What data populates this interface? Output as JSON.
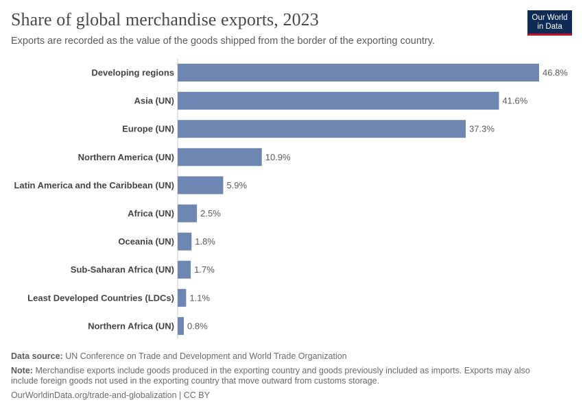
{
  "header": {
    "title": "Share of global merchandise exports, 2023",
    "subtitle": "Exports are recorded as the value of the goods shipped from the border of the exporting country.",
    "logo_line1": "Our World",
    "logo_line2": "in Data"
  },
  "footer": {
    "source_label": "Data source:",
    "source_text": "UN Conference on Trade and Development and World Trade Organization",
    "note_label": "Note:",
    "note_text": "Merchandise exports include goods produced in the exporting country and goods previously included as imports. Exports may also include foreign goods not used in the exporting country that move outward from customs storage.",
    "url": "OurWorldinData.org/trade-and-globalization | CC BY"
  },
  "chart_data": {
    "type": "bar",
    "orientation": "horizontal",
    "categories": [
      "Developing regions",
      "Asia (UN)",
      "Europe (UN)",
      "Northern America (UN)",
      "Latin America and the Caribbean (UN)",
      "Africa (UN)",
      "Oceania (UN)",
      "Sub-Saharan Africa (UN)",
      "Least Developed Countries (LDCs)",
      "Northern Africa (UN)"
    ],
    "values": [
      46.8,
      41.6,
      37.3,
      10.9,
      5.9,
      2.5,
      1.8,
      1.7,
      1.1,
      0.8
    ],
    "value_labels": [
      "46.8%",
      "41.6%",
      "37.3%",
      "10.9%",
      "5.9%",
      "2.5%",
      "1.8%",
      "1.7%",
      "1.1%",
      "0.8%"
    ],
    "unit": "%",
    "xlim": [
      0,
      46.8
    ],
    "bar_color": "#6d87b2",
    "grid": false
  }
}
